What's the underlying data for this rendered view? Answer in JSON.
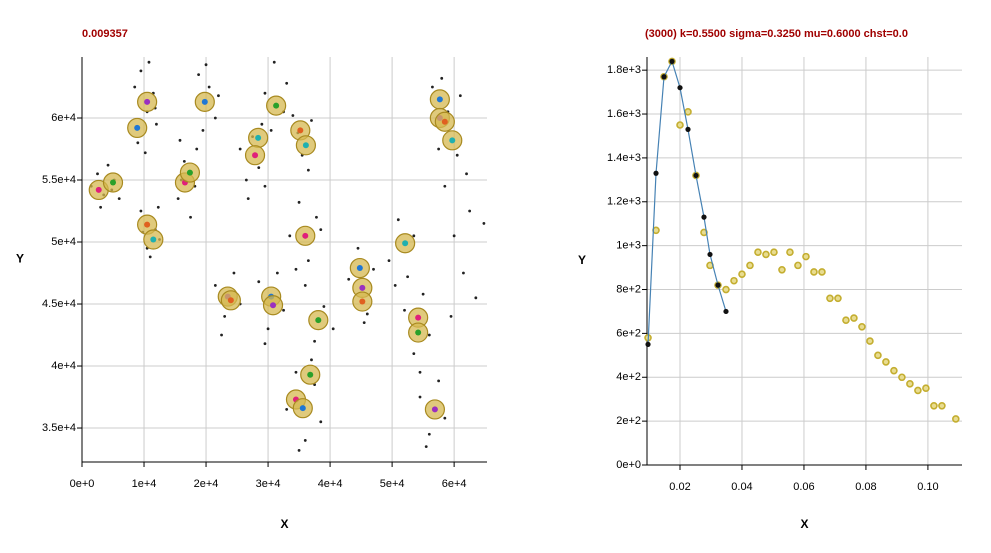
{
  "chart_data": [
    {
      "type": "scatter",
      "title": "0.009357",
      "x_label": "X",
      "y_label": "Y",
      "xlim": [
        0,
        65300
      ],
      "ylim": [
        32260,
        64920
      ],
      "grid": true,
      "xticks": [
        {
          "value": 0,
          "label": "0e+0"
        },
        {
          "value": 10000,
          "label": "1e+4"
        },
        {
          "value": 20000,
          "label": "2e+4"
        },
        {
          "value": 30000,
          "label": "3e+4"
        },
        {
          "value": 40000,
          "label": "4e+4"
        },
        {
          "value": 50000,
          "label": "5e+4"
        },
        {
          "value": 60000,
          "label": "6e+4"
        }
      ],
      "yticks": [
        {
          "value": 35000,
          "label": "3.5e+4"
        },
        {
          "value": 40000,
          "label": "4e+4"
        },
        {
          "value": 45000,
          "label": "4.5e+4"
        },
        {
          "value": 50000,
          "label": "5e+4"
        },
        {
          "value": 55000,
          "label": "5.5e+4"
        },
        {
          "value": 60000,
          "label": "6e+4"
        }
      ],
      "series": [
        {
          "color": "#222222",
          "marker": "dot",
          "x": [
            1500,
            2500,
            3500,
            4200,
            5200,
            6000,
            3000,
            4800,
            8500,
            9500,
            10500,
            11500,
            12000,
            9000,
            10800,
            11800,
            10200,
            9500,
            10500,
            11800,
            12500,
            9800,
            11000,
            12300,
            15500,
            16500,
            17500,
            18500,
            16000,
            18200,
            15800,
            18800,
            20500,
            21500,
            19500,
            22000,
            20000,
            25500,
            26500,
            27500,
            28500,
            29500,
            26800,
            29000,
            29500,
            31000,
            32500,
            30500,
            33000,
            34000,
            35500,
            37000,
            36500,
            34800,
            33500,
            35000,
            36500,
            38500,
            34500,
            37800,
            21500,
            23000,
            24500,
            25500,
            22500,
            28500,
            30000,
            31500,
            32500,
            29500,
            36000,
            37500,
            39000,
            40500,
            37000,
            43000,
            44500,
            46000,
            47000,
            45500,
            49500,
            51000,
            52500,
            53500,
            50500,
            52000,
            53500,
            55000,
            56000,
            54500,
            56500,
            57500,
            59000,
            60500,
            58000,
            61000,
            58500,
            60000,
            61500,
            62500,
            63500,
            59500,
            62000,
            64800,
            33000,
            34500,
            36000,
            37500,
            38500,
            35000,
            54500,
            56000,
            57500,
            58500,
            55500
          ],
          "values": [
            54500,
            55500,
            53800,
            56200,
            55000,
            53500,
            52800,
            54200,
            62500,
            63800,
            60500,
            62000,
            59500,
            58000,
            64500,
            60800,
            57200,
            52500,
            49500,
            51000,
            50200,
            50800,
            48800,
            52800,
            53500,
            56500,
            52000,
            57500,
            55000,
            54500,
            58200,
            63500,
            62500,
            60000,
            59000,
            61800,
            64300,
            57500,
            55000,
            58500,
            56000,
            54500,
            53500,
            59500,
            62000,
            64500,
            60500,
            59000,
            62800,
            60200,
            57000,
            59800,
            55800,
            58800,
            50500,
            53200,
            48500,
            51000,
            47800,
            52000,
            46500,
            44000,
            47500,
            45000,
            42500,
            46800,
            43000,
            47500,
            44500,
            41800,
            46500,
            42000,
            44800,
            43000,
            40500,
            47000,
            49500,
            44200,
            47800,
            43500,
            48500,
            51800,
            47200,
            50500,
            46500,
            44500,
            41000,
            45800,
            42500,
            39500,
            62500,
            57500,
            60500,
            57000,
            63200,
            61800,
            54500,
            50500,
            47500,
            52500,
            45500,
            44000,
            55500,
            51500,
            36500,
            39500,
            34000,
            38500,
            35500,
            33200,
            37500,
            34500,
            38800,
            35800,
            33500
          ]
        },
        {
          "color": "#d6b850",
          "marker": "ring",
          "marker_colors": [
            "#e0207a",
            "#2aa02a",
            "#1f77d4",
            "#9a30c0",
            "#e06020",
            "#20b0b0"
          ],
          "x": [
            2700,
            5000,
            8900,
            10500,
            10500,
            11500,
            16600,
            17400,
            19800,
            23500,
            24000,
            28400,
            27900,
            31300,
            30500,
            30800,
            35200,
            36100,
            36000,
            38100,
            44800,
            45200,
            45200,
            52100,
            54200,
            54200,
            57700,
            57700,
            58500,
            59700,
            34500,
            36800,
            35600,
            56900
          ],
          "values": [
            54200,
            54800,
            59200,
            61300,
            51400,
            50200,
            54800,
            55600,
            61300,
            45600,
            45300,
            58400,
            57000,
            61000,
            45600,
            44900,
            59000,
            57800,
            50500,
            43700,
            47900,
            46300,
            45200,
            49900,
            43900,
            42700,
            61500,
            60000,
            59700,
            58200,
            37300,
            39300,
            36600,
            36500
          ]
        }
      ]
    },
    {
      "type": "scatter",
      "title": "(3000) k=0.5500 sigma=0.3250 mu=0.6000 chst=0.0",
      "x_label": "X",
      "y_label": "Y",
      "xlim": [
        0.00935,
        0.111
      ],
      "ylim": [
        0,
        1860
      ],
      "grid": true,
      "xticks": [
        0.02,
        0.04,
        0.06,
        0.08,
        {
          "value": 0.1,
          "label": "0.10"
        }
      ],
      "yticks": [
        {
          "value": 0,
          "label": "0e+0"
        },
        {
          "value": 200,
          "label": "2e+2"
        },
        {
          "value": 400,
          "label": "4e+2"
        },
        {
          "value": 600,
          "label": "6e+2"
        },
        {
          "value": 800,
          "label": "8e+2"
        },
        {
          "value": 1000,
          "label": "1e+3"
        },
        {
          "value": 1200,
          "label": "1.2e+3"
        },
        {
          "value": 1400,
          "label": "1.4e+3"
        },
        {
          "value": 1600,
          "label": "1.6e+3"
        },
        {
          "value": 1800,
          "label": "1.8e+3"
        }
      ],
      "series": [
        {
          "color": "#c4ae30",
          "marker": "hollow",
          "x": [
            0.00968,
            0.01226,
            0.01484,
            0.01742,
            0.02,
            0.02258,
            0.02516,
            0.02774,
            0.02968,
            0.03226,
            0.03484,
            0.03742,
            0.04,
            0.04258,
            0.04516,
            0.04774,
            0.05032,
            0.0529,
            0.05548,
            0.05806,
            0.06065,
            0.06323,
            0.06581,
            0.06839,
            0.07097,
            0.07355,
            0.07613,
            0.07871,
            0.08129,
            0.08387,
            0.08645,
            0.08903,
            0.09161,
            0.09419,
            0.09677,
            0.09935,
            0.10194,
            0.10452,
            0.109
          ],
          "values": [
            580,
            1070,
            1770,
            1840,
            1550,
            1610,
            1320,
            1060,
            910,
            820,
            800,
            840,
            870,
            910,
            970,
            960,
            970,
            890,
            970,
            910,
            950,
            880,
            880,
            760,
            760,
            660,
            670,
            630,
            565,
            500,
            470,
            430,
            400,
            370,
            340,
            350,
            270,
            270,
            210
          ]
        },
        {
          "color": "#4682b4",
          "marker": "line",
          "point_color": "#111111",
          "x": [
            0.00968,
            0.01226,
            0.01484,
            0.01742,
            0.02,
            0.02258,
            0.02516,
            0.02774,
            0.02968,
            0.03226,
            0.03484
          ],
          "values": [
            550,
            1330,
            1770,
            1840,
            1720,
            1530,
            1320,
            1130,
            960,
            820,
            700
          ]
        }
      ]
    }
  ]
}
